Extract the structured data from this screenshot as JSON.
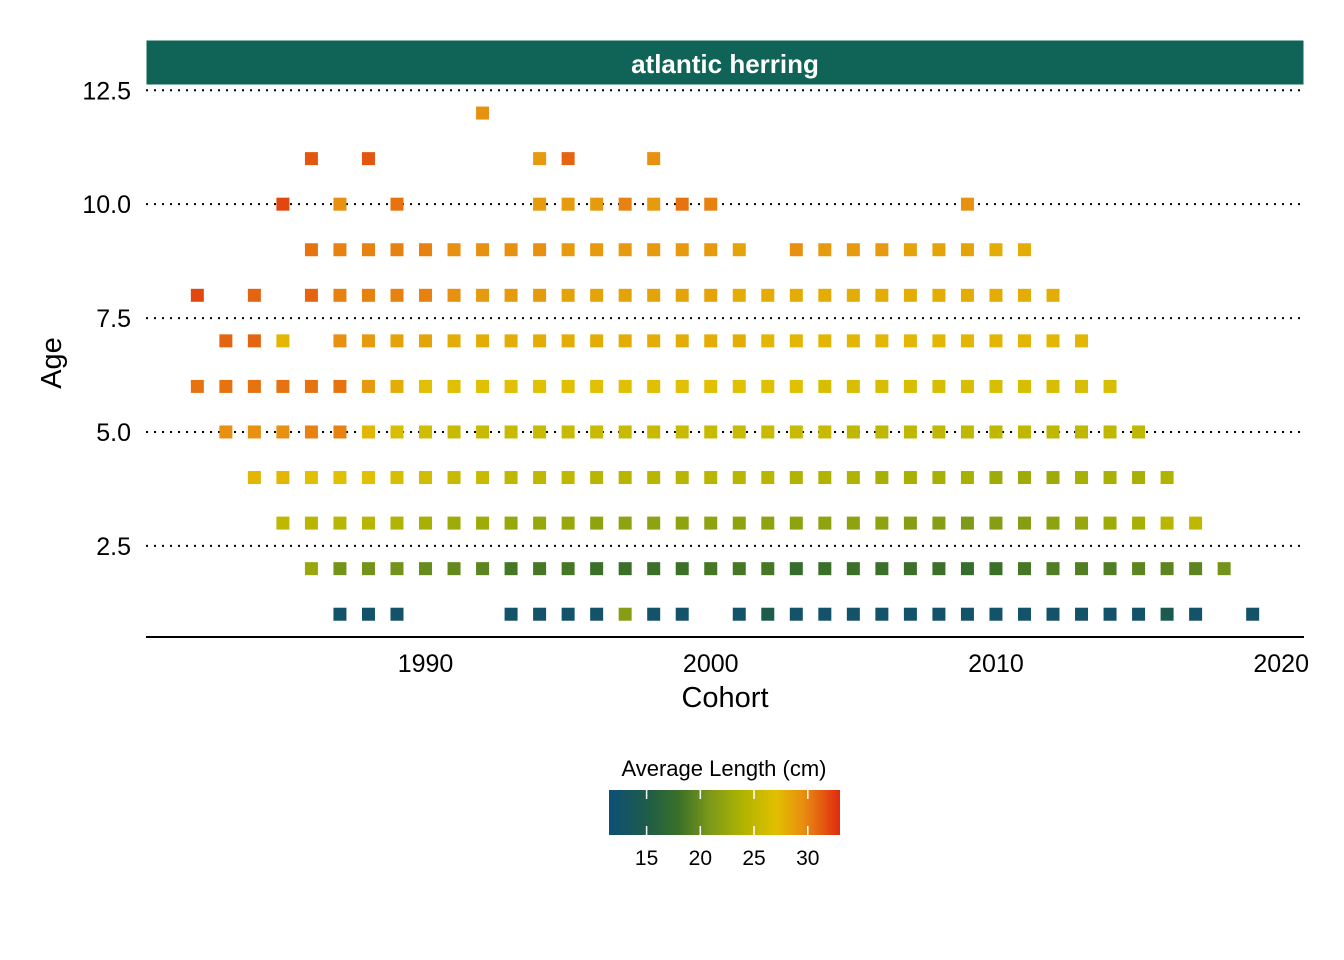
{
  "chart_data": {
    "type": "heatmap",
    "panel_title": "atlantic herring",
    "xlabel": "Cohort",
    "ylabel": "Age",
    "xlim": [
      1980.2,
      2020.8
    ],
    "ylim": [
      0.5,
      12.55
    ],
    "x_ticks": [
      1990,
      2000,
      2010,
      2020
    ],
    "x_tick_labels": [
      "1990",
      "2000",
      "2010",
      "2020"
    ],
    "y_ticks": [
      2.5,
      5.0,
      7.5,
      10.0,
      12.5
    ],
    "y_tick_labels": [
      "2.5",
      "5.0",
      "7.5",
      "10.0",
      "12.5"
    ],
    "grid": "dotted horizontal lines at y ticks",
    "legend": {
      "title": "Average Length (cm)",
      "position": "bottom",
      "range": [
        11.5,
        33
      ],
      "ticks": [
        15,
        20,
        25,
        30
      ],
      "tick_labels": [
        "15",
        "20",
        "25",
        "30"
      ],
      "gradient_stops": [
        {
          "value": 11.5,
          "color": "#0d4f78"
        },
        {
          "value": 15,
          "color": "#1e5c48"
        },
        {
          "value": 18,
          "color": "#3a7028"
        },
        {
          "value": 21,
          "color": "#7e9a18"
        },
        {
          "value": 24,
          "color": "#b0b400"
        },
        {
          "value": 27,
          "color": "#e0c000"
        },
        {
          "value": 29.5,
          "color": "#e89010"
        },
        {
          "value": 33,
          "color": "#e02a10"
        }
      ]
    },
    "colors": {
      "panel_strip": "#0f6357",
      "strip_text": "#ffffff",
      "gridline": "#000000",
      "axis": "#000000"
    },
    "points": [
      {
        "age": 1,
        "cohorts": [
          1987,
          1988,
          1989,
          1993,
          1994,
          1995,
          1996,
          1997,
          1998,
          1999,
          2001,
          2002,
          2003,
          2004,
          2005,
          2006,
          2007,
          2008,
          2009,
          2010,
          2011,
          2012,
          2013,
          2014,
          2015,
          2016,
          2017,
          2019
        ],
        "lengths": [
          12.5,
          12.5,
          12.5,
          12.5,
          12.5,
          12.5,
          12.5,
          21.5,
          12.5,
          12.5,
          12.5,
          14.8,
          12.5,
          12.5,
          12.5,
          12.5,
          12.5,
          12.5,
          12.5,
          12.5,
          12.5,
          12.5,
          12.5,
          12.5,
          12.5,
          14.5,
          12.5,
          12.5
        ]
      },
      {
        "age": 2,
        "cohorts": [
          1986,
          1987,
          1988,
          1989,
          1990,
          1991,
          1992,
          1993,
          1994,
          1995,
          1996,
          1997,
          1998,
          1999,
          2000,
          2001,
          2002,
          2003,
          2004,
          2005,
          2006,
          2007,
          2008,
          2009,
          2010,
          2011,
          2012,
          2013,
          2014,
          2015,
          2016,
          2017,
          2018
        ],
        "lengths": [
          22.5,
          20.5,
          20.5,
          20.5,
          20,
          19.8,
          19.5,
          18.5,
          18.5,
          18.5,
          18,
          18,
          18,
          18,
          18.5,
          18.5,
          18.5,
          17.5,
          18,
          18,
          18,
          18,
          18,
          17.5,
          18,
          18.5,
          19,
          19,
          19,
          19.5,
          19.5,
          19.5,
          20.5
        ]
      },
      {
        "age": 3,
        "cohorts": [
          1985,
          1986,
          1987,
          1988,
          1989,
          1990,
          1991,
          1992,
          1993,
          1994,
          1995,
          1996,
          1997,
          1998,
          1999,
          2000,
          2001,
          2002,
          2003,
          2004,
          2005,
          2006,
          2007,
          2008,
          2009,
          2010,
          2011,
          2012,
          2013,
          2014,
          2015,
          2016,
          2017
        ],
        "lengths": [
          25,
          24.5,
          24.5,
          24.5,
          24,
          23.5,
          23,
          23,
          22.5,
          22.5,
          22.5,
          22,
          22,
          22,
          22,
          22,
          22,
          22,
          22,
          22,
          22,
          22,
          21.5,
          21.5,
          21,
          21.5,
          21.5,
          22,
          22.5,
          23,
          23.5,
          24.5,
          25
        ]
      },
      {
        "age": 4,
        "cohorts": [
          1984,
          1985,
          1986,
          1987,
          1988,
          1989,
          1990,
          1991,
          1992,
          1993,
          1994,
          1995,
          1996,
          1997,
          1998,
          1999,
          2000,
          2001,
          2002,
          2003,
          2004,
          2005,
          2006,
          2007,
          2008,
          2009,
          2010,
          2011,
          2012,
          2013,
          2014,
          2015,
          2016
        ],
        "lengths": [
          27.5,
          27.5,
          27,
          27,
          27,
          26.5,
          26,
          25.5,
          25.5,
          25,
          25,
          25,
          24.5,
          24.5,
          24.5,
          24.5,
          24.5,
          24.5,
          24.5,
          24,
          24,
          24,
          23.5,
          23.5,
          23.5,
          23.5,
          23,
          23,
          23,
          23.5,
          23.5,
          23.5,
          24
        ]
      },
      {
        "age": 5,
        "cohorts": [
          1983,
          1984,
          1985,
          1986,
          1987,
          1988,
          1989,
          1990,
          1991,
          1992,
          1993,
          1994,
          1995,
          1996,
          1997,
          1998,
          1999,
          2000,
          2001,
          2002,
          2003,
          2004,
          2005,
          2006,
          2007,
          2008,
          2009,
          2010,
          2011,
          2012,
          2013,
          2014,
          2015
        ],
        "lengths": [
          29.5,
          29.5,
          29.5,
          30,
          30,
          27.5,
          26.5,
          26,
          25.5,
          25.5,
          25.5,
          25.5,
          25.5,
          25.5,
          25.5,
          25.5,
          25.5,
          25.5,
          25.5,
          25.5,
          25.5,
          25.5,
          25,
          25,
          25,
          25,
          25,
          25,
          25,
          25,
          25,
          25,
          25
        ]
      },
      {
        "age": 6,
        "cohorts": [
          1982,
          1983,
          1984,
          1985,
          1986,
          1987,
          1988,
          1989,
          1990,
          1991,
          1992,
          1993,
          1994,
          1995,
          1996,
          1997,
          1998,
          1999,
          2000,
          2001,
          2002,
          2003,
          2004,
          2005,
          2006,
          2007,
          2008,
          2009,
          2010,
          2011,
          2012,
          2013,
          2014
        ],
        "lengths": [
          30.5,
          30.5,
          30.5,
          30.5,
          30.5,
          30.5,
          29,
          28,
          27,
          27,
          27,
          27,
          27,
          27,
          27,
          27,
          27,
          27,
          27,
          27,
          27,
          27,
          26.5,
          26.5,
          26.5,
          26.5,
          26.5,
          26.5,
          26.5,
          26.5,
          26.5,
          26.5,
          26.5
        ]
      },
      {
        "age": 7,
        "cohorts": [
          1983,
          1984,
          1985,
          1987,
          1988,
          1989,
          1990,
          1991,
          1992,
          1993,
          1994,
          1995,
          1996,
          1997,
          1998,
          1999,
          2000,
          2001,
          2002,
          2003,
          2004,
          2005,
          2006,
          2007,
          2008,
          2009,
          2010,
          2011,
          2012,
          2013
        ],
        "lengths": [
          31,
          31,
          27.5,
          29.5,
          29,
          28.5,
          28.5,
          28,
          28,
          28,
          28,
          28,
          28,
          28,
          28,
          28,
          28,
          28,
          27.5,
          27.5,
          27.5,
          27.5,
          27.5,
          27.5,
          27.5,
          27.5,
          27.5,
          27.5,
          27.5,
          27.5
        ]
      },
      {
        "age": 8,
        "cohorts": [
          1982,
          1984,
          1986,
          1987,
          1988,
          1989,
          1990,
          1991,
          1992,
          1993,
          1994,
          1995,
          1996,
          1997,
          1998,
          1999,
          2000,
          2001,
          2002,
          2003,
          2004,
          2005,
          2006,
          2007,
          2008,
          2009,
          2010,
          2011,
          2012
        ],
        "lengths": [
          32,
          31,
          31,
          30,
          30,
          30,
          30,
          29.5,
          29,
          29,
          29,
          28.5,
          28.5,
          28.5,
          28.5,
          28.5,
          28.5,
          28,
          28,
          28,
          28,
          28,
          28,
          28,
          28,
          28,
          28,
          28,
          28
        ]
      },
      {
        "age": 9,
        "cohorts": [
          1986,
          1987,
          1988,
          1989,
          1990,
          1991,
          1992,
          1993,
          1994,
          1995,
          1996,
          1997,
          1998,
          1999,
          2000,
          2001,
          2003,
          2004,
          2005,
          2006,
          2007,
          2008,
          2009,
          2010,
          2011
        ],
        "lengths": [
          30.5,
          30,
          30,
          30,
          30,
          29.5,
          29.5,
          29.5,
          29.5,
          29,
          29,
          29,
          29,
          29,
          29,
          28.5,
          29.5,
          29,
          29,
          29,
          28.5,
          28.5,
          28.5,
          28,
          28
        ]
      },
      {
        "age": 10,
        "cohorts": [
          1985,
          1987,
          1989,
          1994,
          1995,
          1996,
          1997,
          1998,
          1999,
          2000,
          2009
        ],
        "lengths": [
          32,
          29.5,
          30.5,
          29,
          29,
          29,
          30,
          29,
          30.5,
          30,
          29.5
        ]
      },
      {
        "age": 11,
        "cohorts": [
          1986,
          1988,
          1994,
          1995,
          1998
        ],
        "lengths": [
          31.5,
          31.5,
          29,
          31,
          29.5
        ]
      },
      {
        "age": 12,
        "cohorts": [
          1992
        ],
        "lengths": [
          29.5
        ]
      }
    ]
  }
}
